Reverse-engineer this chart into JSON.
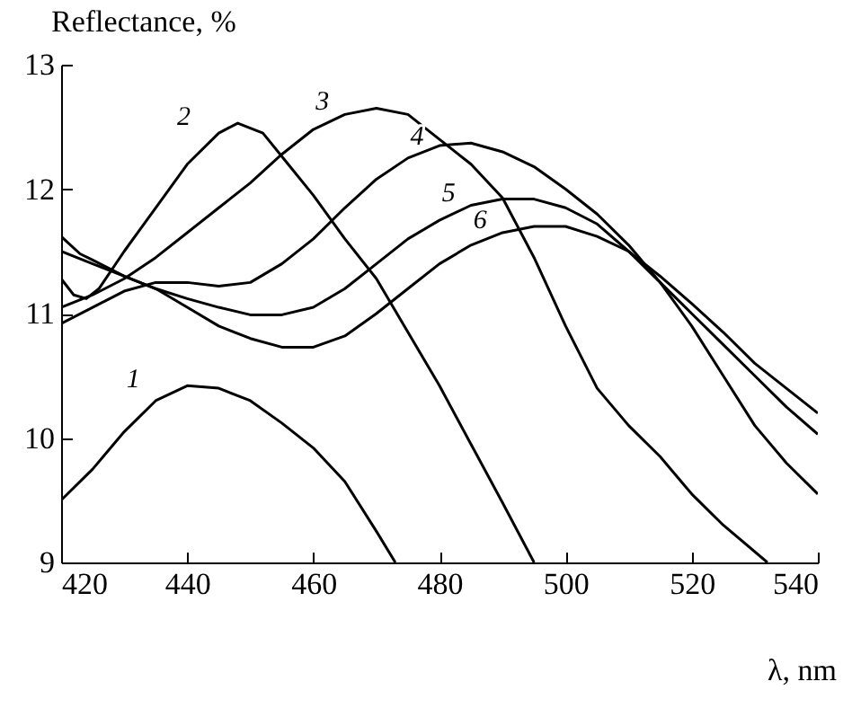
{
  "chart_data": {
    "type": "line",
    "xlabel": "λ, nm",
    "ylabel": "Reflectance, %",
    "xlim": [
      420,
      540
    ],
    "xticks": [
      420,
      440,
      460,
      480,
      500,
      520,
      540
    ],
    "ylim": [
      9,
      13
    ],
    "yticks": [
      9,
      10,
      11,
      12,
      13
    ],
    "grid": false,
    "legend": false,
    "marker": "none",
    "line_style": "solid",
    "series": [
      {
        "name": "1",
        "color": "#000000",
        "x": [
          420,
          425,
          430,
          435,
          440,
          445,
          450,
          455,
          460,
          465,
          470,
          473
        ],
        "values": [
          9.5,
          9.75,
          10.05,
          10.3,
          10.42,
          10.4,
          10.3,
          10.12,
          9.92,
          9.65,
          9.25,
          9.0
        ]
      },
      {
        "name": "2",
        "color": "#000000",
        "x": [
          420,
          422,
          424,
          426,
          430,
          435,
          440,
          445,
          448,
          452,
          456,
          460,
          465,
          470,
          475,
          480,
          485,
          490,
          495
        ],
        "values": [
          11.28,
          11.15,
          11.12,
          11.2,
          11.5,
          11.85,
          12.2,
          12.45,
          12.53,
          12.45,
          12.2,
          11.95,
          11.6,
          11.28,
          10.85,
          10.42,
          9.95,
          9.48,
          9.0
        ]
      },
      {
        "name": "3",
        "color": "#000000",
        "x": [
          420,
          425,
          430,
          435,
          440,
          445,
          450,
          455,
          460,
          465,
          470,
          475,
          480,
          485,
          490,
          495,
          500,
          505,
          510,
          515,
          520,
          525,
          532
        ],
        "values": [
          11.05,
          11.15,
          11.28,
          11.45,
          11.65,
          11.85,
          12.05,
          12.28,
          12.48,
          12.6,
          12.65,
          12.6,
          12.4,
          12.2,
          11.93,
          11.45,
          10.9,
          10.4,
          10.1,
          9.85,
          9.55,
          9.3,
          9.0
        ]
      },
      {
        "name": "4",
        "color": "#000000",
        "x": [
          420,
          425,
          430,
          435,
          440,
          445,
          450,
          455,
          460,
          465,
          470,
          475,
          480,
          485,
          490,
          495,
          500,
          505,
          510,
          515,
          520,
          525,
          530,
          535,
          540
        ],
        "values": [
          10.92,
          11.05,
          11.18,
          11.25,
          11.25,
          11.22,
          11.25,
          11.4,
          11.6,
          11.85,
          12.08,
          12.25,
          12.35,
          12.37,
          12.3,
          12.18,
          12.0,
          11.8,
          11.55,
          11.25,
          10.9,
          10.5,
          10.1,
          9.8,
          9.55
        ]
      },
      {
        "name": "5",
        "color": "#000000",
        "x": [
          420,
          425,
          430,
          435,
          440,
          445,
          450,
          455,
          460,
          465,
          470,
          475,
          480,
          485,
          490,
          495,
          500,
          505,
          510,
          515,
          520,
          525,
          530,
          535,
          540
        ],
        "values": [
          11.5,
          11.4,
          11.3,
          11.2,
          11.12,
          11.05,
          10.99,
          10.99,
          11.05,
          11.2,
          11.4,
          11.6,
          11.75,
          11.87,
          11.92,
          11.92,
          11.85,
          11.72,
          11.5,
          11.25,
          11.0,
          10.75,
          10.5,
          10.25,
          10.03
        ]
      },
      {
        "name": "6",
        "color": "#000000",
        "x": [
          420,
          423,
          425,
          430,
          435,
          440,
          445,
          450,
          455,
          460,
          465,
          470,
          475,
          480,
          485,
          490,
          495,
          500,
          505,
          510,
          515,
          520,
          525,
          530,
          535,
          540
        ],
        "values": [
          11.62,
          11.48,
          11.43,
          11.3,
          11.2,
          11.05,
          10.9,
          10.8,
          10.73,
          10.73,
          10.82,
          11.0,
          11.2,
          11.4,
          11.55,
          11.65,
          11.7,
          11.7,
          11.62,
          11.5,
          11.3,
          11.08,
          10.85,
          10.6,
          10.4,
          10.2
        ]
      }
    ]
  }
}
